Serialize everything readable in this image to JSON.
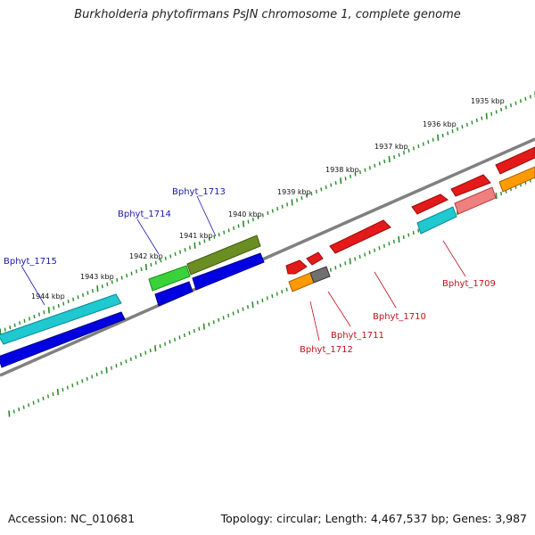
{
  "title": "Burkholderia phytofirmans PsJN chromosome 1, complete genome",
  "footer": {
    "accession": "Accession: NC_010681",
    "summary": "Topology: circular; Length: 4,467,537 bp; Genes: 3,987"
  },
  "colors": {
    "strand_line": "#808080",
    "tick": "#2a8a2a",
    "label_blue": "#1a1aa8",
    "label_red": "#c0141c"
  },
  "scale": {
    "upper_ticks": [
      "1935 kbp",
      "1936 kbp",
      "1937 kbp",
      "1938 kbp",
      "1939 kbp",
      "1940 kbp",
      "1941 kbp",
      "1942 kbp",
      "1943 kbp",
      "1944 kbp"
    ]
  },
  "genes": {
    "Bphyt_1709": "Bphyt_1709",
    "Bphyt_1710": "Bphyt_1710",
    "Bphyt_1711": "Bphyt_1711",
    "Bphyt_1712": "Bphyt_1712",
    "Bphyt_1713": "Bphyt_1713",
    "Bphyt_1714": "Bphyt_1714",
    "Bphyt_1715": "Bphyt_1715"
  }
}
